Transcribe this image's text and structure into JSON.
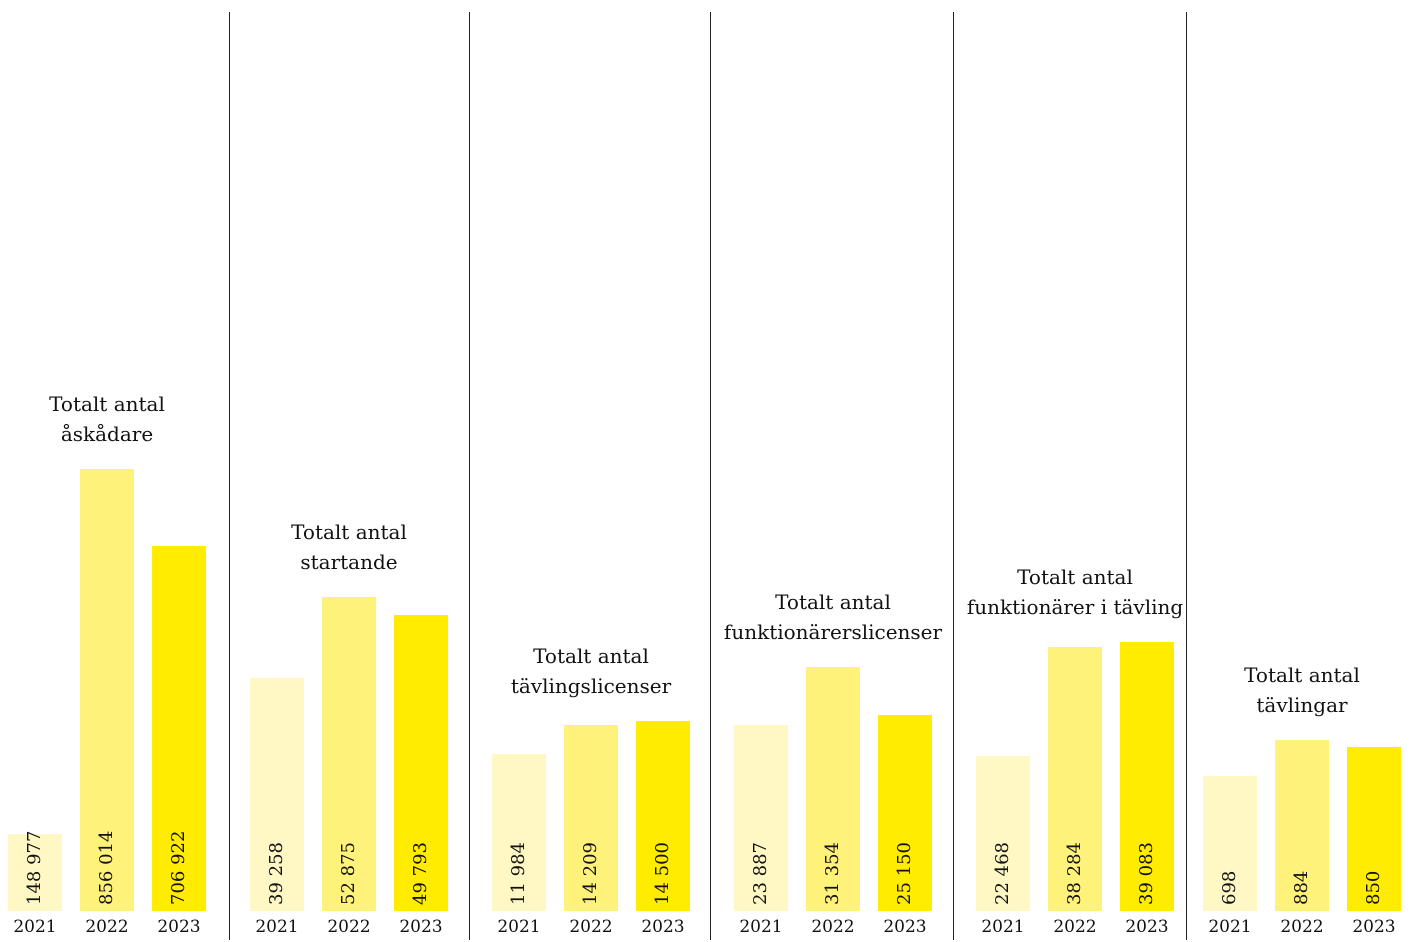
{
  "chart_data": [
    {
      "type": "bar",
      "title": "Totalt antal åskådare",
      "title_lines": [
        "Totalt antal",
        "åskådare"
      ],
      "categories": [
        "2021",
        "2022",
        "2023"
      ],
      "values": [
        148977,
        856014,
        706922
      ],
      "value_labels": [
        "148 977",
        "856 014",
        "706 922"
      ],
      "colors": [
        "#fff8c4",
        "#fff27a",
        "#ffec00"
      ]
    },
    {
      "type": "bar",
      "title": "Totalt antal startande",
      "title_lines": [
        "Totalt antal",
        "startande"
      ],
      "categories": [
        "2021",
        "2022",
        "2023"
      ],
      "values": [
        39258,
        52875,
        49793
      ],
      "value_labels": [
        "39 258",
        "52 875",
        "49 793"
      ],
      "colors": [
        "#fff8c4",
        "#fff27a",
        "#ffec00"
      ]
    },
    {
      "type": "bar",
      "title": "Totalt antal tävlingslicenser",
      "title_lines": [
        "Totalt antal",
        "tävlingslicenser"
      ],
      "categories": [
        "2021",
        "2022",
        "2023"
      ],
      "values": [
        11984,
        14209,
        14500
      ],
      "value_labels": [
        "11 984",
        "14 209",
        "14 500"
      ],
      "colors": [
        "#fff8c4",
        "#fff27a",
        "#ffec00"
      ]
    },
    {
      "type": "bar",
      "title": "Totalt antal funktionärerslicenser",
      "title_lines": [
        "Totalt antal",
        "funktionärerslicenser"
      ],
      "categories": [
        "2021",
        "2022",
        "2023"
      ],
      "values": [
        23887,
        31354,
        25150
      ],
      "value_labels": [
        "23 887",
        "31 354",
        "25 150"
      ],
      "colors": [
        "#fff8c4",
        "#fff27a",
        "#ffec00"
      ]
    },
    {
      "type": "bar",
      "title": "Totalt antal funktionärer i tävling",
      "title_lines": [
        "Totalt antal",
        "funktionärer i tävling"
      ],
      "categories": [
        "2021",
        "2022",
        "2023"
      ],
      "values": [
        22468,
        38284,
        39083
      ],
      "value_labels": [
        "22 468",
        "38 284",
        "39 083"
      ],
      "colors": [
        "#fff8c4",
        "#fff27a",
        "#ffec00"
      ]
    },
    {
      "type": "bar",
      "title": "Totalt antal tävlingar",
      "title_lines": [
        "Totalt antal",
        "tävlingar"
      ],
      "categories": [
        "2021",
        "2022",
        "2023"
      ],
      "values": [
        698,
        884,
        850
      ],
      "value_labels": [
        "698",
        "884",
        "850"
      ],
      "colors": [
        "#fff8c4",
        "#fff27a",
        "#ffec00"
      ]
    }
  ]
}
